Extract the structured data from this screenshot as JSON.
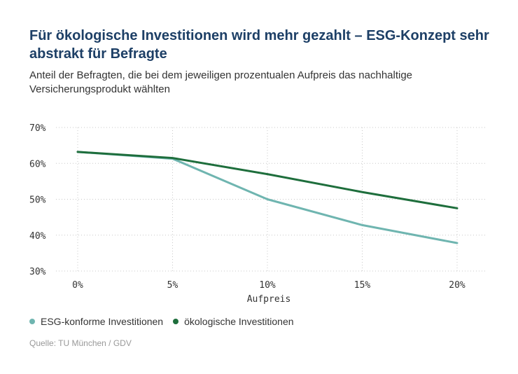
{
  "title": "Für ökologische Investitionen wird mehr gezahlt – ESG-Konzept sehr abstrakt für Befragte",
  "subtitle": "Anteil der Befragten, die bei dem jeweiligen prozentualen Aufpreis das nachhaltige Versicherungsprodukt wählten",
  "source": "Quelle: TU München / GDV",
  "chart_data": {
    "type": "line",
    "x": [
      "0%",
      "5%",
      "10%",
      "15%",
      "20%"
    ],
    "xlabel": "Aufpreis",
    "ylabel": "",
    "ylim": [
      30,
      70
    ],
    "yticks": [
      "30%",
      "40%",
      "50%",
      "60%",
      "70%"
    ],
    "ytick_values": [
      30,
      40,
      50,
      60,
      70
    ],
    "grid": true,
    "legend_position": "bottom-left",
    "series": [
      {
        "name": "ESG-konforme Investitionen",
        "color": "#6fb5b0",
        "values": [
          63.2,
          61.3,
          50,
          42.8,
          37.8
        ]
      },
      {
        "name": "ökologische Investitionen",
        "color": "#1e6e3c",
        "values": [
          63.2,
          61.5,
          57,
          52,
          47.5
        ]
      }
    ]
  }
}
